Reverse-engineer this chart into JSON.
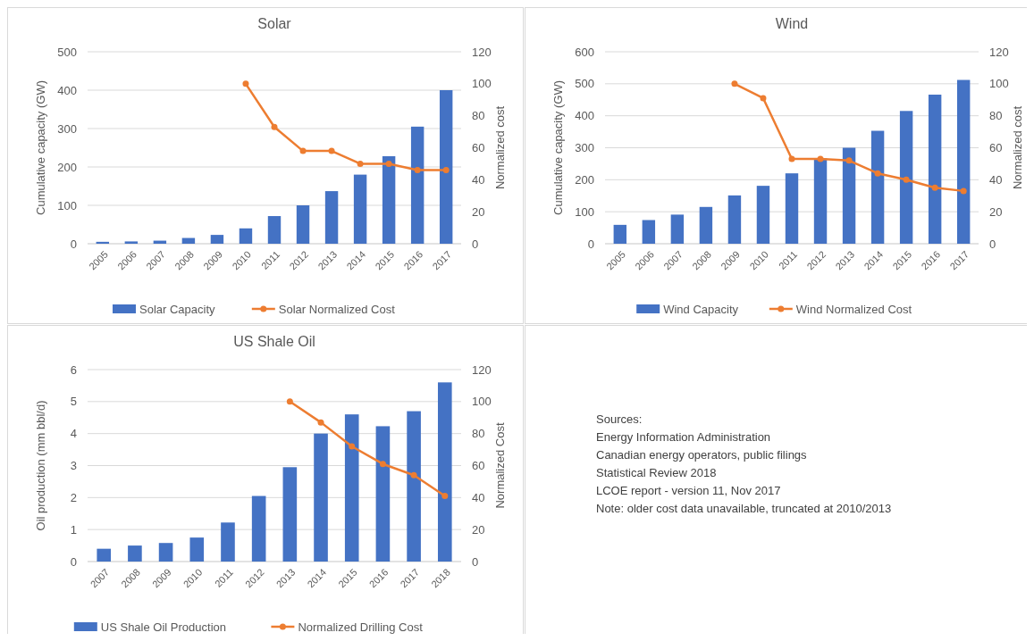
{
  "chart_data": [
    {
      "type": "bar",
      "title": "Solar",
      "categories": [
        "2005",
        "2006",
        "2007",
        "2008",
        "2009",
        "2010",
        "2011",
        "2012",
        "2013",
        "2014",
        "2015",
        "2016",
        "2017"
      ],
      "ylabel": "Cumulative capacity (GW)",
      "y2label": "Normalized cost",
      "ylim": [
        0,
        500
      ],
      "yticks": [
        0,
        100,
        200,
        300,
        400,
        500
      ],
      "y2lim": [
        0,
        120
      ],
      "y2ticks": [
        0,
        20,
        40,
        60,
        80,
        100,
        120
      ],
      "grid": "y",
      "legend": "bottom",
      "series": [
        {
          "name": "Solar Capacity",
          "type": "bar",
          "color": "#4472c4",
          "values": [
            5,
            6,
            8,
            15,
            23,
            40,
            72,
            100,
            137,
            180,
            228,
            305,
            400
          ]
        },
        {
          "name": "Solar Normalized Cost",
          "type": "line",
          "axis": "y2",
          "color": "#ed7d31",
          "marker": "circle",
          "values": [
            null,
            null,
            null,
            null,
            null,
            100,
            73,
            58,
            58,
            50,
            50,
            46,
            46
          ]
        }
      ]
    },
    {
      "type": "bar",
      "title": "Wind",
      "categories": [
        "2005",
        "2006",
        "2007",
        "2008",
        "2009",
        "2010",
        "2011",
        "2012",
        "2013",
        "2014",
        "2015",
        "2016",
        "2017"
      ],
      "ylabel": "Cumulative capacity (GW)",
      "y2label": "Normalized cost",
      "ylim": [
        0,
        600
      ],
      "yticks": [
        0,
        100,
        200,
        300,
        400,
        500,
        600
      ],
      "y2lim": [
        0,
        120
      ],
      "y2ticks": [
        0,
        20,
        40,
        60,
        80,
        100,
        120
      ],
      "grid": "y",
      "legend": "bottom",
      "series": [
        {
          "name": "Wind Capacity",
          "type": "bar",
          "color": "#4472c4",
          "values": [
            59,
            74,
            91,
            115,
            151,
            181,
            220,
            267,
            300,
            353,
            415,
            466,
            512
          ]
        },
        {
          "name": "Wind Normalized Cost",
          "type": "line",
          "axis": "y2",
          "color": "#ed7d31",
          "marker": "circle",
          "values": [
            null,
            null,
            null,
            null,
            100,
            91,
            53,
            53,
            52,
            44,
            40,
            35,
            33
          ]
        }
      ]
    },
    {
      "type": "bar",
      "title": "US Shale Oil",
      "categories": [
        "2007",
        "2008",
        "2009",
        "2010",
        "2011",
        "2012",
        "2013",
        "2014",
        "2015",
        "2016",
        "2017",
        "2018"
      ],
      "ylabel": "Oil production (mm bbl/d)",
      "y2label": "Normalized Cost",
      "ylim": [
        0,
        6
      ],
      "yticks": [
        0,
        1,
        2,
        3,
        4,
        5,
        6
      ],
      "y2lim": [
        0,
        120
      ],
      "y2ticks": [
        0,
        20,
        40,
        60,
        80,
        100,
        120
      ],
      "grid": "y",
      "legend": "bottom",
      "series": [
        {
          "name": "US Shale Oil Production",
          "type": "bar",
          "color": "#4472c4",
          "values": [
            0.4,
            0.5,
            0.58,
            0.75,
            1.22,
            2.05,
            2.95,
            4.0,
            4.6,
            4.23,
            4.7,
            5.6
          ]
        },
        {
          "name": "Normalized Drilling Cost",
          "type": "line",
          "axis": "y2",
          "color": "#ed7d31",
          "marker": "circle",
          "values": [
            null,
            null,
            null,
            null,
            null,
            null,
            100,
            87,
            72,
            61,
            54,
            41
          ]
        }
      ]
    },
    {
      "type": "other",
      "annotations": [
        "Sources:",
        "Energy Information Administration",
        "Canadian energy operators, public filings",
        "Statistical Review 2018",
        "LCOE report - version 11, Nov 2017",
        "Note: older cost data unavailable, truncated at 2010/2013"
      ]
    }
  ]
}
